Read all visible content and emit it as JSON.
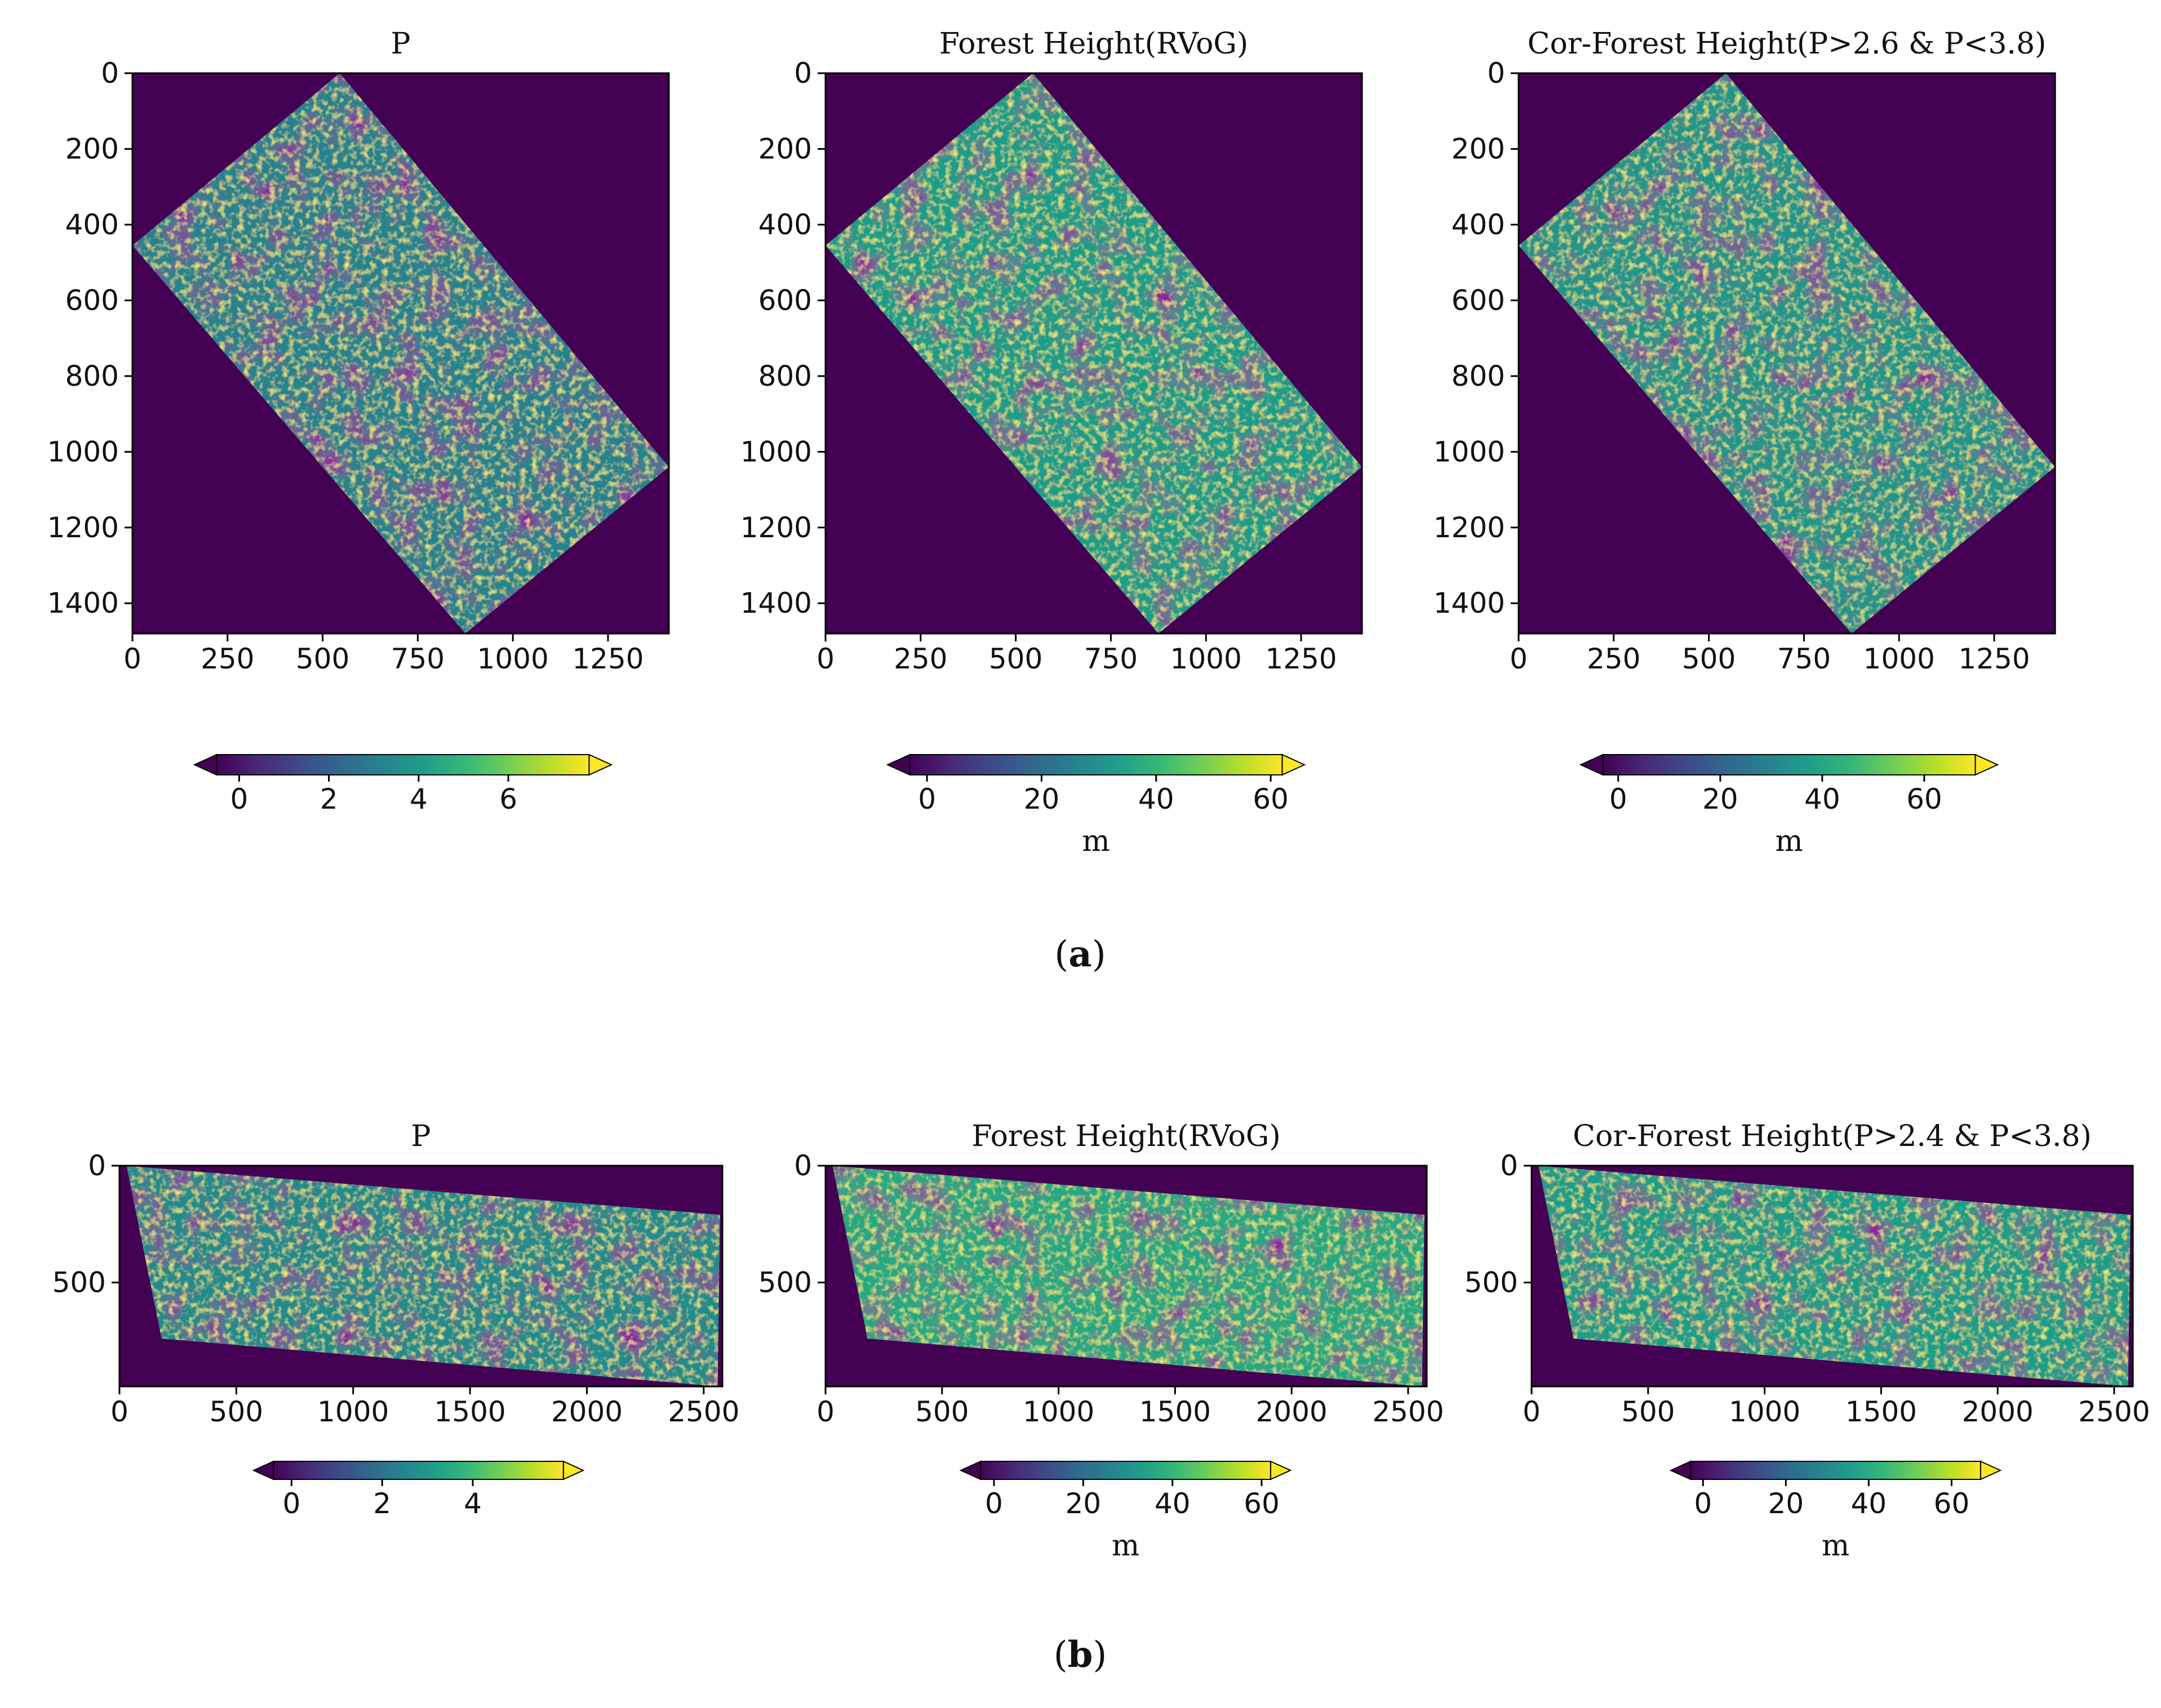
{
  "colors": {
    "background": "#440154",
    "viridis": [
      "#440154",
      "#482878",
      "#3e4989",
      "#31688e",
      "#26828e",
      "#1f9e89",
      "#35b779",
      "#6ece58",
      "#b5de2b",
      "#fde725"
    ]
  },
  "captions": {
    "a": {
      "open": "(",
      "letter": "a",
      "close": ")"
    },
    "b": {
      "open": "(",
      "letter": "b",
      "close": ")"
    }
  },
  "chart_data": [
    {
      "type": "heatmap",
      "row": "a",
      "title": "P",
      "xlim": [
        0,
        1410
      ],
      "ylim": [
        1480,
        0
      ],
      "xticks": [
        0,
        250,
        500,
        750,
        1000,
        1250
      ],
      "yticks": [
        0,
        200,
        400,
        600,
        800,
        1000,
        1200,
        1400
      ],
      "footprint": [
        [
          545,
          0
        ],
        [
          1410,
          1040
        ],
        [
          875,
          1480
        ],
        [
          0,
          455
        ]
      ],
      "colorbar": {
        "min": -0.5,
        "max": 7.8,
        "ticks": [
          0,
          2,
          4,
          6
        ],
        "extend": "both",
        "label": ""
      },
      "mean_level": 0.45
    },
    {
      "type": "heatmap",
      "row": "a",
      "title": "Forest Height(RVoG)",
      "xlim": [
        0,
        1410
      ],
      "ylim": [
        1480,
        0
      ],
      "xticks": [
        0,
        250,
        500,
        750,
        1000,
        1250
      ],
      "yticks": [
        0,
        200,
        400,
        600,
        800,
        1000,
        1200,
        1400
      ],
      "footprint": [
        [
          545,
          0
        ],
        [
          1410,
          1040
        ],
        [
          875,
          1480
        ],
        [
          0,
          455
        ]
      ],
      "colorbar": {
        "min": -3,
        "max": 62,
        "ticks": [
          0,
          20,
          40,
          60
        ],
        "extend": "both",
        "label": "m"
      },
      "mean_level": 0.55
    },
    {
      "type": "heatmap",
      "row": "a",
      "title": "Cor-Forest Height(P>2.6 & P<3.8)",
      "xlim": [
        0,
        1410
      ],
      "ylim": [
        1480,
        0
      ],
      "xticks": [
        0,
        250,
        500,
        750,
        1000,
        1250
      ],
      "yticks": [
        0,
        200,
        400,
        600,
        800,
        1000,
        1200,
        1400
      ],
      "footprint": [
        [
          545,
          0
        ],
        [
          1410,
          1040
        ],
        [
          875,
          1480
        ],
        [
          0,
          455
        ]
      ],
      "colorbar": {
        "min": -3,
        "max": 70,
        "ticks": [
          0,
          20,
          40,
          60
        ],
        "extend": "both",
        "label": "m"
      },
      "mean_level": 0.52
    },
    {
      "type": "heatmap",
      "row": "b",
      "title": "P",
      "xlim": [
        0,
        2580
      ],
      "ylim": [
        945,
        0
      ],
      "xticks": [
        0,
        500,
        1000,
        1500,
        2000,
        2500
      ],
      "yticks": [
        0,
        500
      ],
      "footprint": [
        [
          30,
          0
        ],
        [
          2570,
          210
        ],
        [
          2560,
          945
        ],
        [
          180,
          740
        ]
      ],
      "colorbar": {
        "min": -0.4,
        "max": 6.0,
        "ticks": [
          0,
          2,
          4
        ],
        "extend": "both",
        "label": ""
      },
      "mean_level": 0.48
    },
    {
      "type": "heatmap",
      "row": "b",
      "title": "Forest Height(RVoG)",
      "xlim": [
        0,
        2580
      ],
      "ylim": [
        945,
        0
      ],
      "xticks": [
        0,
        500,
        1000,
        1500,
        2000,
        2500
      ],
      "yticks": [
        0,
        500
      ],
      "footprint": [
        [
          30,
          0
        ],
        [
          2570,
          210
        ],
        [
          2560,
          945
        ],
        [
          180,
          740
        ]
      ],
      "colorbar": {
        "min": -3,
        "max": 62,
        "ticks": [
          0,
          20,
          40,
          60
        ],
        "extend": "both",
        "label": "m"
      },
      "mean_level": 0.6
    },
    {
      "type": "heatmap",
      "row": "b",
      "title": "Cor-Forest Height(P>2.4 & P<3.8)",
      "xlim": [
        0,
        2580
      ],
      "ylim": [
        945,
        0
      ],
      "xticks": [
        0,
        500,
        1000,
        1500,
        2000,
        2500
      ],
      "yticks": [
        0,
        500
      ],
      "footprint": [
        [
          30,
          0
        ],
        [
          2570,
          210
        ],
        [
          2560,
          945
        ],
        [
          180,
          740
        ]
      ],
      "colorbar": {
        "min": -3,
        "max": 67,
        "ticks": [
          0,
          20,
          40,
          60
        ],
        "extend": "both",
        "label": "m"
      },
      "mean_level": 0.55
    }
  ]
}
